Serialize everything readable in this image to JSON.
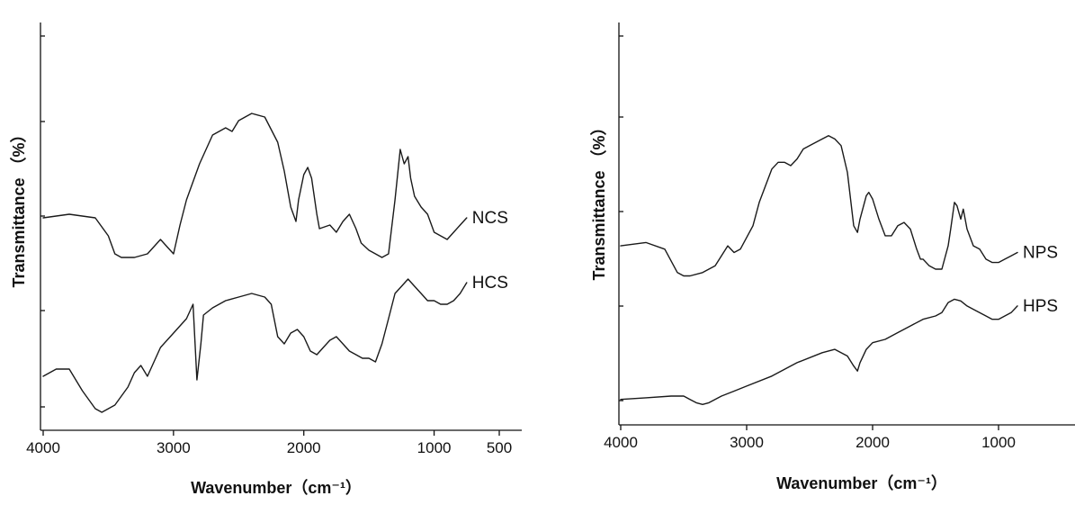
{
  "chart_data": [
    {
      "type": "line",
      "xlabel": "Wavenumber（cm⁻¹）",
      "ylabel": "Transmittance （%）",
      "xlim": [
        4000,
        500
      ],
      "x_reversed": true,
      "xticks": [
        4000,
        3000,
        2000,
        1000,
        500
      ],
      "yticks": [],
      "grid": false,
      "series": [
        {
          "name": "NCS",
          "x": [
            4000,
            3800,
            3600,
            3500,
            3450,
            3400,
            3300,
            3200,
            3100,
            3050,
            3000,
            2950,
            2900,
            2800,
            2700,
            2600,
            2550,
            2500,
            2450,
            2400,
            2300,
            2200,
            2150,
            2100,
            2060,
            2040,
            2000,
            1970,
            1940,
            1900,
            1880,
            1800,
            1750,
            1700,
            1650,
            1600,
            1560,
            1500,
            1450,
            1400,
            1350,
            1300,
            1260,
            1230,
            1200,
            1180,
            1150,
            1100,
            1050,
            1000,
            950,
            900,
            850,
            800,
            750
          ],
          "y": [
            57,
            58,
            57,
            52,
            47,
            46,
            46,
            47,
            51,
            49,
            47,
            55,
            62,
            72,
            80,
            82,
            81,
            84,
            85,
            86,
            85,
            78,
            70,
            60,
            56,
            62,
            69,
            71,
            68,
            58,
            54,
            55,
            53,
            56,
            58,
            54,
            50,
            48,
            47,
            46,
            47,
            62,
            76,
            72,
            74,
            68,
            63,
            60,
            58,
            53,
            52,
            51,
            53,
            55,
            57
          ],
          "label": "NCS"
        },
        {
          "name": "HCS",
          "x": [
            4000,
            3900,
            3800,
            3700,
            3600,
            3550,
            3450,
            3350,
            3300,
            3250,
            3200,
            3100,
            3000,
            2900,
            2850,
            2820,
            2790,
            2770,
            2700,
            2600,
            2500,
            2400,
            2300,
            2250,
            2200,
            2150,
            2100,
            2050,
            2000,
            1950,
            1900,
            1850,
            1800,
            1750,
            1700,
            1650,
            1600,
            1550,
            1500,
            1450,
            1400,
            1350,
            1300,
            1250,
            1200,
            1150,
            1100,
            1050,
            1000,
            950,
            900,
            850,
            800,
            750
          ],
          "y": [
            13,
            15,
            15,
            9,
            4,
            3,
            5,
            10,
            14,
            16,
            13,
            21,
            25,
            29,
            33,
            12,
            22,
            30,
            32,
            34,
            35,
            36,
            35,
            33,
            24,
            22,
            25,
            26,
            24,
            20,
            19,
            21,
            23,
            24,
            22,
            20,
            19,
            18,
            18,
            17,
            22,
            29,
            36,
            38,
            40,
            38,
            36,
            34,
            34,
            33,
            33,
            34,
            36,
            39
          ],
          "label": "HCS"
        }
      ]
    },
    {
      "type": "line",
      "xlabel": "Wavenumber（cm⁻¹）",
      "ylabel": "Transmittance （%）",
      "xlim": [
        4000,
        800
      ],
      "x_reversed": true,
      "xticks": [
        4000,
        3000,
        2000,
        1000
      ],
      "yticks": [],
      "grid": false,
      "series": [
        {
          "name": "NPS",
          "x": [
            4000,
            3800,
            3650,
            3550,
            3500,
            3450,
            3350,
            3250,
            3150,
            3100,
            3050,
            2950,
            2900,
            2800,
            2750,
            2700,
            2650,
            2600,
            2550,
            2500,
            2400,
            2350,
            2300,
            2250,
            2200,
            2150,
            2120,
            2100,
            2050,
            2030,
            2000,
            1950,
            1900,
            1850,
            1800,
            1750,
            1700,
            1650,
            1620,
            1600,
            1550,
            1500,
            1450,
            1400,
            1380,
            1350,
            1330,
            1300,
            1280,
            1250,
            1200,
            1150,
            1100,
            1050,
            1000,
            950,
            900,
            850
          ],
          "y": [
            52,
            53,
            51,
            44,
            43,
            43,
            44,
            46,
            52,
            50,
            51,
            58,
            65,
            75,
            77,
            77,
            76,
            78,
            81,
            82,
            84,
            85,
            84,
            82,
            74,
            58,
            56,
            60,
            67,
            68,
            66,
            60,
            55,
            55,
            58,
            59,
            57,
            51,
            48,
            48,
            46,
            45,
            45,
            52,
            57,
            65,
            64,
            60,
            63,
            57,
            52,
            51,
            48,
            47,
            47,
            48,
            49,
            50
          ],
          "label": "NPS"
        },
        {
          "name": "HPS",
          "x": [
            4000,
            3800,
            3600,
            3500,
            3450,
            3400,
            3350,
            3300,
            3200,
            3100,
            3000,
            2800,
            2600,
            2400,
            2300,
            2200,
            2150,
            2120,
            2100,
            2050,
            2000,
            1900,
            1800,
            1700,
            1600,
            1500,
            1450,
            1400,
            1350,
            1300,
            1250,
            1200,
            1100,
            1050,
            1000,
            950,
            900,
            850
          ],
          "y": [
            6,
            6.5,
            7,
            7,
            6,
            5,
            4.5,
            5,
            7,
            8.5,
            10,
            13,
            17,
            20,
            21,
            19,
            16,
            14.5,
            17,
            21,
            23,
            24,
            26,
            28,
            30,
            31,
            32,
            35,
            36,
            35.5,
            34,
            33,
            31,
            30,
            30,
            31,
            32,
            34
          ],
          "label": "HPS"
        }
      ]
    }
  ]
}
